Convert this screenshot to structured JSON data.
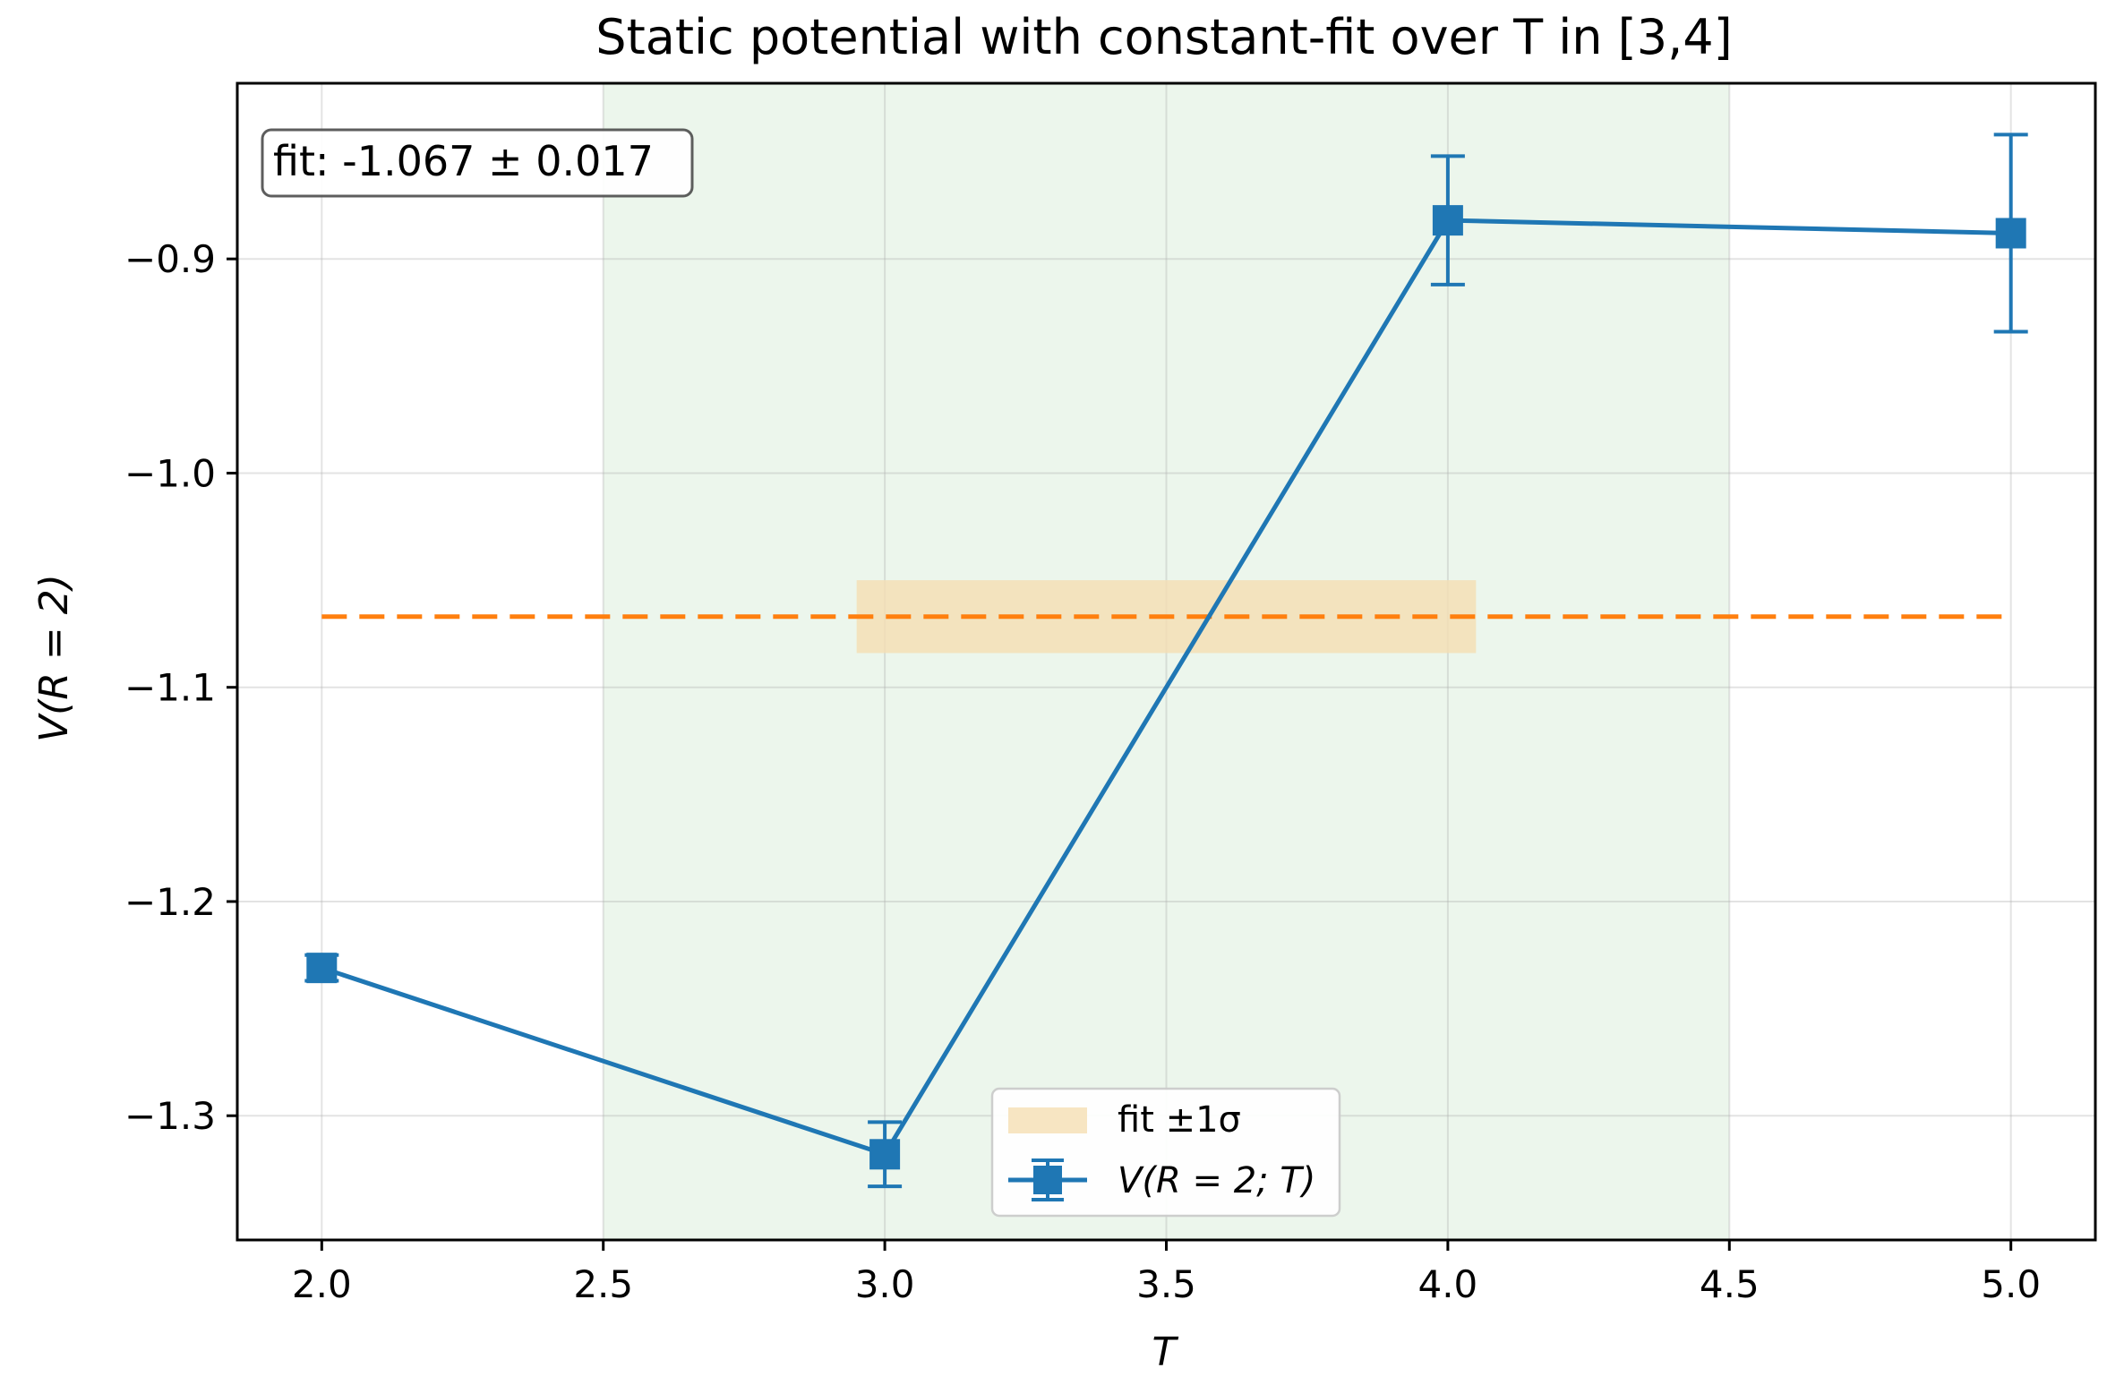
{
  "chart_data": {
    "type": "line",
    "title": "Static potential with constant-fit over T in [3,4]",
    "xlabel": "T",
    "ylabel": "V(R = 2)",
    "xlim": [
      1.85,
      5.15
    ],
    "ylim": [
      -1.358,
      -0.818
    ],
    "x_ticks": [
      2.0,
      2.5,
      3.0,
      3.5,
      4.0,
      4.5,
      5.0
    ],
    "x_tick_labels": [
      "2.0",
      "2.5",
      "3.0",
      "3.5",
      "4.0",
      "4.5",
      "5.0"
    ],
    "y_ticks": [
      -1.3,
      -1.2,
      -1.1,
      -1.0,
      -0.9
    ],
    "y_tick_labels": [
      "−1.3",
      "−1.2",
      "−1.1",
      "−1.0",
      "−0.9"
    ],
    "grid": true,
    "legend_placement": "lower center",
    "highlight_region": {
      "x0": 2.5,
      "x1": 4.5,
      "color": "#e6f3e6"
    },
    "series": [
      {
        "name": "V(R = 2; T)",
        "color": "#1f77b4",
        "marker": "square",
        "x": [
          2.0,
          3.0,
          4.0,
          5.0
        ],
        "y": [
          -1.231,
          -1.318,
          -0.882,
          -0.888
        ],
        "yerr": [
          0.006,
          0.015,
          0.03,
          0.046
        ]
      }
    ],
    "fit": {
      "value": -1.067,
      "error": 0.017,
      "line_color": "#ff7f0e",
      "line_x": [
        2.0,
        5.0
      ],
      "band_x": [
        2.95,
        4.05
      ],
      "band_color": "#f5deb3",
      "legend_label": "fit ±1σ",
      "annotation": "fit: -1.067 ± 0.017"
    }
  }
}
